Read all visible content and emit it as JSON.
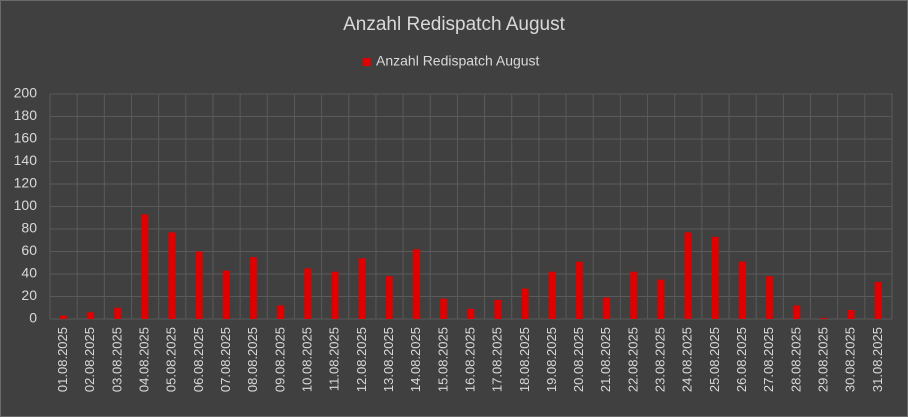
{
  "chart_data": {
    "type": "bar",
    "title": "Anzahl Redispatch August",
    "categories": [
      "01.08.2025",
      "02.08.2025",
      "03.08.2025",
      "04.08.2025",
      "05.08.2025",
      "06.08.2025",
      "07.08.2025",
      "08.08.2025",
      "09.08.2025",
      "10.08.2025",
      "11.08.2025",
      "12.08.2025",
      "13.08.2025",
      "14.08.2025",
      "15.08.2025",
      "16.08.2025",
      "17.08.2025",
      "18.08.2025",
      "19.08.2025",
      "20.08.2025",
      "21.08.2025",
      "22.08.2025",
      "23.08.2025",
      "24.08.2025",
      "25.08.2025",
      "26.08.2025",
      "27.08.2025",
      "28.08.2025",
      "29.08.2025",
      "30.08.2025",
      "31.08.2025"
    ],
    "series": [
      {
        "name": "Anzahl Redispatch August",
        "color": "#e00000",
        "values": [
          3,
          6,
          10,
          93,
          77,
          60,
          43,
          55,
          12,
          45,
          42,
          54,
          38,
          62,
          18,
          9,
          17,
          27,
          42,
          51,
          19,
          42,
          35,
          77,
          73,
          51,
          38,
          12,
          1,
          8,
          33
        ]
      }
    ],
    "ylim": [
      0,
      200
    ],
    "yticks": [
      0,
      20,
      40,
      60,
      80,
      100,
      120,
      140,
      160,
      180,
      200
    ],
    "grid": true,
    "legend": "top"
  }
}
